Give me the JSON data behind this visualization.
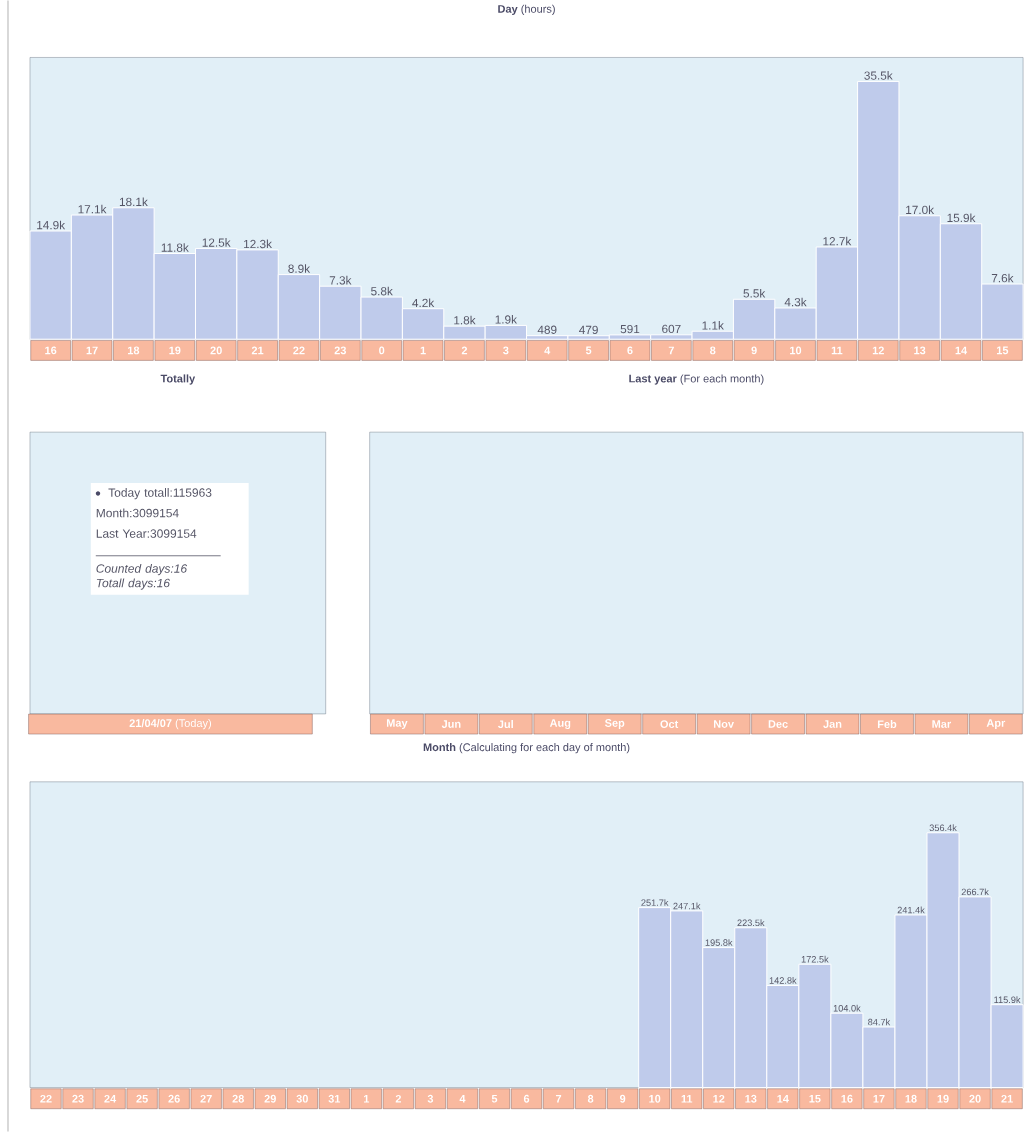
{
  "chart_data": [
    {
      "type": "bar",
      "title": "**Day** (hours)",
      "color": "#bfcbeb",
      "categories": [
        "16",
        "17",
        "18",
        "19",
        "20",
        "21",
        "22",
        "23",
        "0",
        "1",
        "2",
        "3",
        "4",
        "5",
        "6",
        "7",
        "8",
        "9",
        "10",
        "11",
        "12",
        "13",
        "14",
        "15"
      ],
      "values": [
        14900,
        17100,
        18100,
        11800,
        12500,
        12300,
        8900,
        7300,
        5800,
        4200,
        1800,
        1900,
        489,
        479,
        591,
        607,
        1100,
        5500,
        4300,
        12700,
        35500,
        17000,
        15900,
        7600
      ],
      "value_labels": [
        "14.9k",
        "17.1k",
        "18.1k",
        "11.8k",
        "12.5k",
        "12.3k",
        "8.9k",
        "7.3k",
        "5.8k",
        "4.2k",
        "1.8k",
        "1.9k",
        "489",
        "479",
        "591",
        "607",
        "1.1k",
        "5.5k",
        "4.3k",
        "12.7k",
        "35.5k",
        "17.0k",
        "15.9k",
        "7.6k"
      ]
    },
    {
      "type": "other",
      "title": "**Totally**",
      "xlabel": "**21/04/07** (Today)",
      "annotations": [
        "Today totall:115963",
        "Month:3099154",
        "Last Year:3099154",
        "Counted days:16",
        "Totall days:16"
      ]
    },
    {
      "type": "other",
      "title": "**Last year** (For each month)",
      "categories": [
        "May",
        "Jun",
        "Jul",
        "Aug",
        "Sep",
        "Oct",
        "Nov",
        "Dec",
        "Jan",
        "Feb",
        "Mar",
        "Apr"
      ]
    },
    {
      "type": "bar",
      "title": "**Month** (Calculating for each day of month)",
      "color": "#bfcbeb",
      "categories": [
        "22",
        "23",
        "24",
        "25",
        "26",
        "27",
        "28",
        "29",
        "30",
        "31",
        "1",
        "2",
        "3",
        "4",
        "5",
        "6",
        "7",
        "8",
        "9",
        "10",
        "11",
        "12",
        "13",
        "14",
        "15",
        "16",
        "17",
        "18",
        "19",
        "20",
        "21"
      ],
      "values": [
        null,
        null,
        null,
        null,
        null,
        null,
        null,
        null,
        null,
        null,
        null,
        null,
        null,
        null,
        null,
        null,
        null,
        null,
        null,
        251700,
        247100,
        195800,
        223500,
        142800,
        172500,
        104000,
        84700,
        241400,
        356400,
        266700,
        115900
      ],
      "value_labels": [
        null,
        null,
        null,
        null,
        null,
        null,
        null,
        null,
        null,
        null,
        null,
        null,
        null,
        null,
        null,
        null,
        null,
        null,
        null,
        "251.7k",
        "247.1k",
        "195.8k",
        "223.5k",
        "142.8k",
        "172.5k",
        "104.0k",
        "84.7k",
        "241.4k",
        "356.4k",
        "266.7k",
        "115.9k"
      ]
    }
  ]
}
